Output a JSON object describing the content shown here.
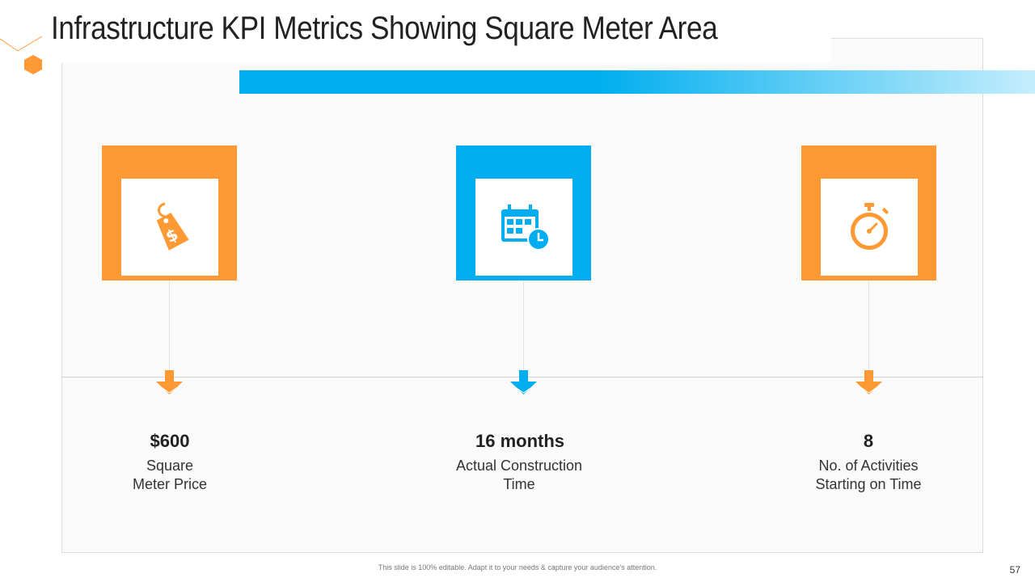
{
  "slide": {
    "title": "Infrastructure KPI Metrics Showing Square Meter Area",
    "footer_note": "This slide is 100% editable. Adapt it to your needs & capture your audience’s attention.",
    "page_number": "57"
  },
  "colors": {
    "orange": "#ff9933",
    "blue": "#00aeef",
    "panel": "#fafafa"
  },
  "kpis": [
    {
      "value": "$600",
      "label_line1": "Square",
      "label_line2": "Meter Price",
      "icon": "price-tag-icon",
      "color": "#ff9933"
    },
    {
      "value": "16 months",
      "label_line1": "Actual Construction",
      "label_line2": "Time",
      "icon": "calendar-clock-icon",
      "color": "#00aeef"
    },
    {
      "value": "8",
      "label_line1": "No. of Activities",
      "label_line2": "Starting on Time",
      "icon": "stopwatch-icon",
      "color": "#ff9933"
    }
  ]
}
